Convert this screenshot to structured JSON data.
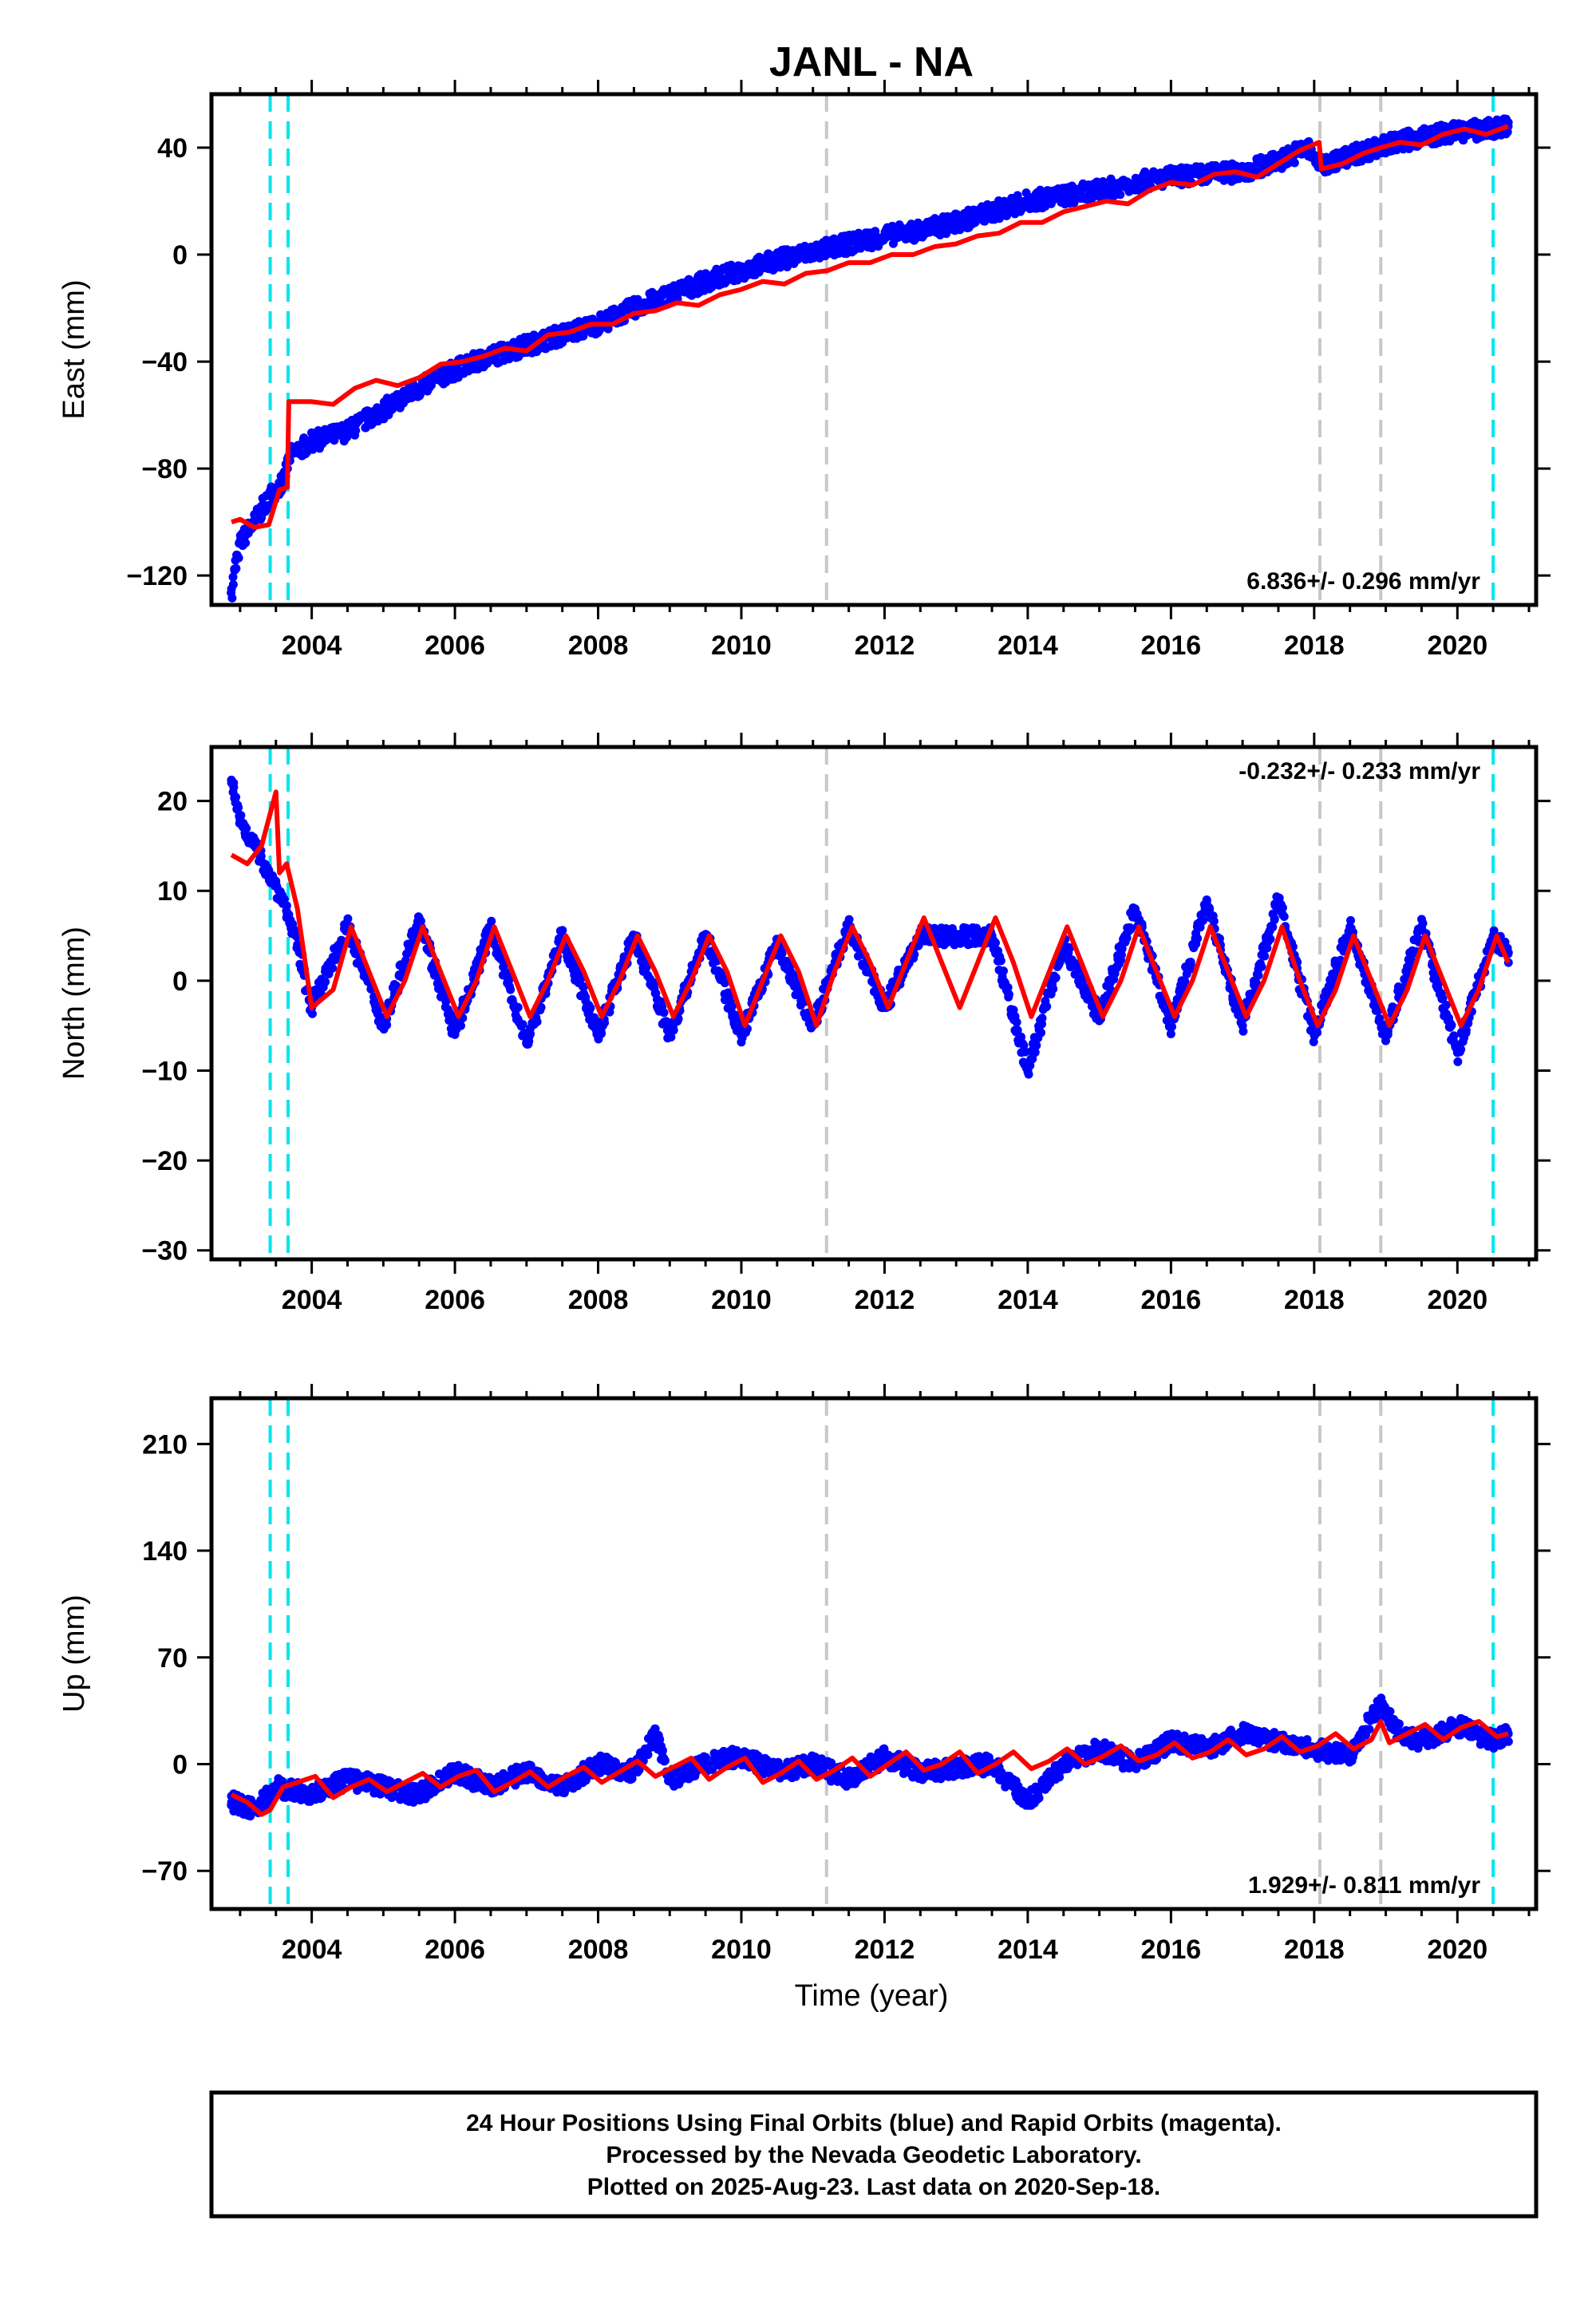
{
  "title": "JANL - NA",
  "xlabel": "Time (year)",
  "footer": {
    "lines": [
      "24 Hour Positions Using Final Orbits (blue) and Rapid Orbits (magenta).",
      "Processed by the Nevada Geodetic Laboratory.",
      "Plotted on 2025-Aug-23. Last data on 2020-Sep-18."
    ]
  },
  "colors": {
    "final_orbits": "#0000ff",
    "model_fit": "#ff0000",
    "equipment_change": "#00e5ee",
    "earthquake_offset": "#c8c8c8",
    "frame": "#000000"
  },
  "chart_data": [
    {
      "type": "scatter",
      "panel": "east",
      "ylabel": "East (mm)",
      "rate": "6.836+/- 0.296 mm/yr",
      "rate_position": "bottom-right",
      "xlim": [
        2002.6,
        2021.1
      ],
      "ylim": [
        -131,
        60
      ],
      "xticks": [
        2004,
        2006,
        2008,
        2010,
        2012,
        2014,
        2016,
        2018,
        2020
      ],
      "yticks": [
        -120,
        -80,
        -40,
        0,
        40
      ],
      "cyan_lines": [
        2003.42,
        2003.67,
        2020.5
      ],
      "gray_lines": [
        2011.19,
        2018.08,
        2018.93
      ],
      "series": [
        {
          "role": "final",
          "x": [
            2002.88,
            2003.0,
            2003.2,
            2003.42,
            2003.6,
            2003.7,
            2004.0,
            2004.5,
            2005.0,
            2005.5,
            2006.0,
            2006.5,
            2007.0,
            2007.5,
            2008.0,
            2008.5,
            2009.0,
            2009.5,
            2010.0,
            2010.5,
            2011.0,
            2011.5,
            2012.0,
            2012.5,
            2013.0,
            2013.5,
            2014.0,
            2014.5,
            2015.0,
            2015.5,
            2016.0,
            2016.5,
            2017.0,
            2017.5,
            2017.9,
            2018.1,
            2018.5,
            2019.0,
            2019.5,
            2020.0,
            2020.5,
            2020.71
          ],
          "y": [
            -125,
            -108,
            -100,
            -90,
            -85,
            -75,
            -70,
            -66,
            -58,
            -50,
            -43,
            -38,
            -34,
            -30,
            -26,
            -20,
            -15,
            -10,
            -6,
            -2,
            1,
            4,
            7,
            9,
            12,
            16,
            20,
            22,
            24,
            27,
            29,
            30,
            31,
            35,
            40,
            33,
            37,
            41,
            44,
            46,
            47,
            48
          ]
        },
        {
          "role": "model",
          "x": [
            2002.88,
            2003.0,
            2003.2,
            2003.4,
            2003.55,
            2003.66,
            2003.68,
            2004.0,
            2004.3,
            2004.6,
            2004.9,
            2005.2,
            2005.5,
            2005.8,
            2006.1,
            2006.4,
            2006.7,
            2007.0,
            2007.3,
            2007.6,
            2007.9,
            2008.2,
            2008.5,
            2008.8,
            2009.1,
            2009.4,
            2009.7,
            2010.0,
            2010.3,
            2010.6,
            2010.9,
            2011.2,
            2011.5,
            2011.8,
            2012.1,
            2012.4,
            2012.7,
            2013.0,
            2013.3,
            2013.6,
            2013.9,
            2014.2,
            2014.5,
            2014.8,
            2015.1,
            2015.4,
            2015.7,
            2016.0,
            2016.3,
            2016.6,
            2016.9,
            2017.2,
            2017.5,
            2017.8,
            2018.07,
            2018.1,
            2018.4,
            2018.7,
            2018.93,
            2019.2,
            2019.5,
            2019.8,
            2020.1,
            2020.4,
            2020.71
          ],
          "y": [
            -100,
            -99,
            -102,
            -101,
            -88,
            -87,
            -55,
            -55,
            -56,
            -50,
            -47,
            -49,
            -46,
            -41,
            -40,
            -38,
            -35,
            -36,
            -30,
            -29,
            -26,
            -26,
            -22,
            -21,
            -18,
            -19,
            -15,
            -13,
            -10,
            -11,
            -7,
            -6,
            -3,
            -3,
            0,
            0,
            3,
            4,
            7,
            8,
            12,
            12,
            16,
            18,
            20,
            19,
            24,
            27,
            26,
            30,
            31,
            29,
            34,
            39,
            42,
            32,
            34,
            38,
            40,
            42,
            41,
            45,
            47,
            45,
            48
          ]
        }
      ]
    },
    {
      "type": "scatter",
      "panel": "north",
      "ylabel": "North (mm)",
      "rate": "-0.232+/- 0.233 mm/yr",
      "rate_position": "top-right",
      "xlim": [
        2002.6,
        2021.1
      ],
      "ylim": [
        -31,
        26
      ],
      "xticks": [
        2004,
        2006,
        2008,
        2010,
        2012,
        2014,
        2016,
        2018,
        2020
      ],
      "yticks": [
        -30,
        -20,
        -10,
        0,
        10,
        20
      ],
      "cyan_lines": [
        2003.42,
        2003.67,
        2020.5
      ],
      "gray_lines": [
        2011.19,
        2018.08,
        2018.93
      ],
      "series": [
        {
          "role": "final",
          "x": [
            2002.88,
            2003.0,
            2003.2,
            2003.4,
            2003.6,
            2003.8,
            2004.0,
            2004.5,
            2005.0,
            2005.5,
            2006.0,
            2006.5,
            2007.0,
            2007.5,
            2008.0,
            2008.5,
            2009.0,
            2009.5,
            2010.0,
            2010.5,
            2011.0,
            2011.5,
            2012.0,
            2012.5,
            2013.5,
            2014.0,
            2014.5,
            2015.0,
            2015.5,
            2016.0,
            2016.5,
            2017.0,
            2017.5,
            2018.0,
            2018.5,
            2019.0,
            2019.5,
            2020.0,
            2020.5,
            2020.71
          ],
          "y": [
            22,
            18,
            15,
            12,
            9,
            4,
            -3,
            6,
            -5,
            7,
            -6,
            6,
            -7,
            5,
            -6,
            5,
            -6,
            5,
            -6,
            4,
            -5,
            6,
            -3,
            5,
            5,
            -10,
            4,
            -4,
            8,
            -5,
            9,
            -5,
            9,
            -6,
            6,
            -6,
            6,
            -8,
            5,
            3
          ]
        },
        {
          "role": "model",
          "x": [
            2002.88,
            2003.1,
            2003.3,
            2003.5,
            2003.55,
            2003.65,
            2003.8,
            2004.0,
            2004.3,
            2004.55,
            2004.8,
            2005.05,
            2005.3,
            2005.55,
            2005.8,
            2006.05,
            2006.3,
            2006.55,
            2006.8,
            2007.05,
            2007.3,
            2007.55,
            2007.8,
            2008.05,
            2008.3,
            2008.55,
            2008.8,
            2009.05,
            2009.3,
            2009.55,
            2009.8,
            2010.05,
            2010.3,
            2010.55,
            2010.8,
            2011.05,
            2011.3,
            2011.55,
            2011.8,
            2012.05,
            2012.3,
            2012.55,
            2012.8,
            2013.05,
            2013.3,
            2013.55,
            2013.8,
            2014.05,
            2014.3,
            2014.55,
            2014.8,
            2015.05,
            2015.3,
            2015.55,
            2015.8,
            2016.05,
            2016.3,
            2016.55,
            2016.8,
            2017.05,
            2017.3,
            2017.55,
            2017.8,
            2018.05,
            2018.3,
            2018.55,
            2018.8,
            2019.05,
            2019.3,
            2019.55,
            2019.8,
            2020.05,
            2020.3,
            2020.55,
            2020.71
          ],
          "y": [
            14,
            13,
            15,
            21,
            12,
            13,
            8,
            -3,
            -1,
            6,
            1,
            -4,
            0,
            6,
            1,
            -4,
            0,
            6,
            1,
            -4,
            0,
            5,
            1,
            -4,
            0,
            5,
            1,
            -4,
            0,
            5,
            1,
            -5,
            0,
            5,
            1,
            -5,
            1,
            6,
            2,
            -3,
            2,
            7,
            2,
            -3,
            2,
            7,
            2,
            -4,
            1,
            6,
            1,
            -4,
            0,
            6,
            1,
            -4,
            0,
            6,
            1,
            -4,
            0,
            6,
            0,
            -5,
            -1,
            5,
            0,
            -5,
            -1,
            5,
            0,
            -5,
            -1,
            5,
            2
          ]
        }
      ]
    },
    {
      "type": "scatter",
      "panel": "up",
      "ylabel": "Up (mm)",
      "rate": "1.929+/- 0.811 mm/yr",
      "rate_position": "bottom-right",
      "xlim": [
        2002.6,
        2021.1
      ],
      "ylim": [
        -95,
        240
      ],
      "xticks": [
        2004,
        2006,
        2008,
        2010,
        2012,
        2014,
        2016,
        2018,
        2020
      ],
      "yticks": [
        -70,
        0,
        70,
        140,
        210
      ],
      "cyan_lines": [
        2003.42,
        2003.67,
        2020.5
      ],
      "gray_lines": [
        2011.19,
        2018.08,
        2018.93
      ],
      "series": [
        {
          "role": "final",
          "x": [
            2002.88,
            2003.2,
            2003.5,
            2004.0,
            2004.5,
            2005.0,
            2005.5,
            2006.0,
            2006.5,
            2007.0,
            2007.5,
            2008.0,
            2008.5,
            2008.8,
            2009.0,
            2009.5,
            2010.0,
            2010.5,
            2011.0,
            2011.5,
            2012.0,
            2012.5,
            2013.5,
            2014.0,
            2014.5,
            2015.0,
            2015.5,
            2016.0,
            2016.5,
            2017.0,
            2017.5,
            2018.0,
            2018.5,
            2018.93,
            2019.2,
            2019.5,
            2020.0,
            2020.5,
            2020.71
          ],
          "y": [
            -25,
            -30,
            -15,
            -20,
            -10,
            -15,
            -20,
            -5,
            -15,
            -5,
            -15,
            0,
            -5,
            20,
            -10,
            0,
            5,
            -5,
            0,
            -10,
            5,
            -5,
            0,
            -25,
            0,
            10,
            0,
            15,
            10,
            20,
            15,
            10,
            5,
            40,
            20,
            15,
            25,
            15,
            20
          ]
        },
        {
          "role": "model",
          "x": [
            2002.88,
            2003.1,
            2003.3,
            2003.42,
            2003.6,
            2003.8,
            2004.05,
            2004.3,
            2004.55,
            2004.8,
            2005.05,
            2005.3,
            2005.55,
            2005.8,
            2006.05,
            2006.3,
            2006.55,
            2006.8,
            2007.05,
            2007.3,
            2007.55,
            2007.8,
            2008.05,
            2008.3,
            2008.55,
            2008.8,
            2009.05,
            2009.3,
            2009.55,
            2009.8,
            2010.05,
            2010.3,
            2010.55,
            2010.8,
            2011.05,
            2011.3,
            2011.55,
            2011.8,
            2012.05,
            2012.3,
            2012.55,
            2012.8,
            2013.05,
            2013.3,
            2013.55,
            2013.8,
            2014.05,
            2014.3,
            2014.55,
            2014.8,
            2015.05,
            2015.3,
            2015.55,
            2015.8,
            2016.05,
            2016.3,
            2016.55,
            2016.8,
            2017.05,
            2017.3,
            2017.55,
            2017.8,
            2018.05,
            2018.3,
            2018.55,
            2018.8,
            2018.93,
            2019.05,
            2019.3,
            2019.55,
            2019.8,
            2020.05,
            2020.3,
            2020.55,
            2020.71
          ],
          "y": [
            -20,
            -25,
            -33,
            -30,
            -15,
            -12,
            -8,
            -22,
            -15,
            -10,
            -18,
            -12,
            -6,
            -15,
            -8,
            -4,
            -18,
            -12,
            -5,
            -15,
            -8,
            -2,
            -12,
            -5,
            2,
            -8,
            -2,
            4,
            -10,
            -2,
            4,
            -12,
            -6,
            2,
            -10,
            -4,
            4,
            -8,
            0,
            8,
            -4,
            0,
            8,
            -6,
            0,
            8,
            -3,
            2,
            10,
            0,
            5,
            12,
            2,
            6,
            14,
            4,
            8,
            16,
            6,
            10,
            18,
            8,
            12,
            20,
            10,
            16,
            28,
            14,
            20,
            26,
            16,
            24,
            28,
            18,
            20
          ]
        }
      ]
    }
  ]
}
